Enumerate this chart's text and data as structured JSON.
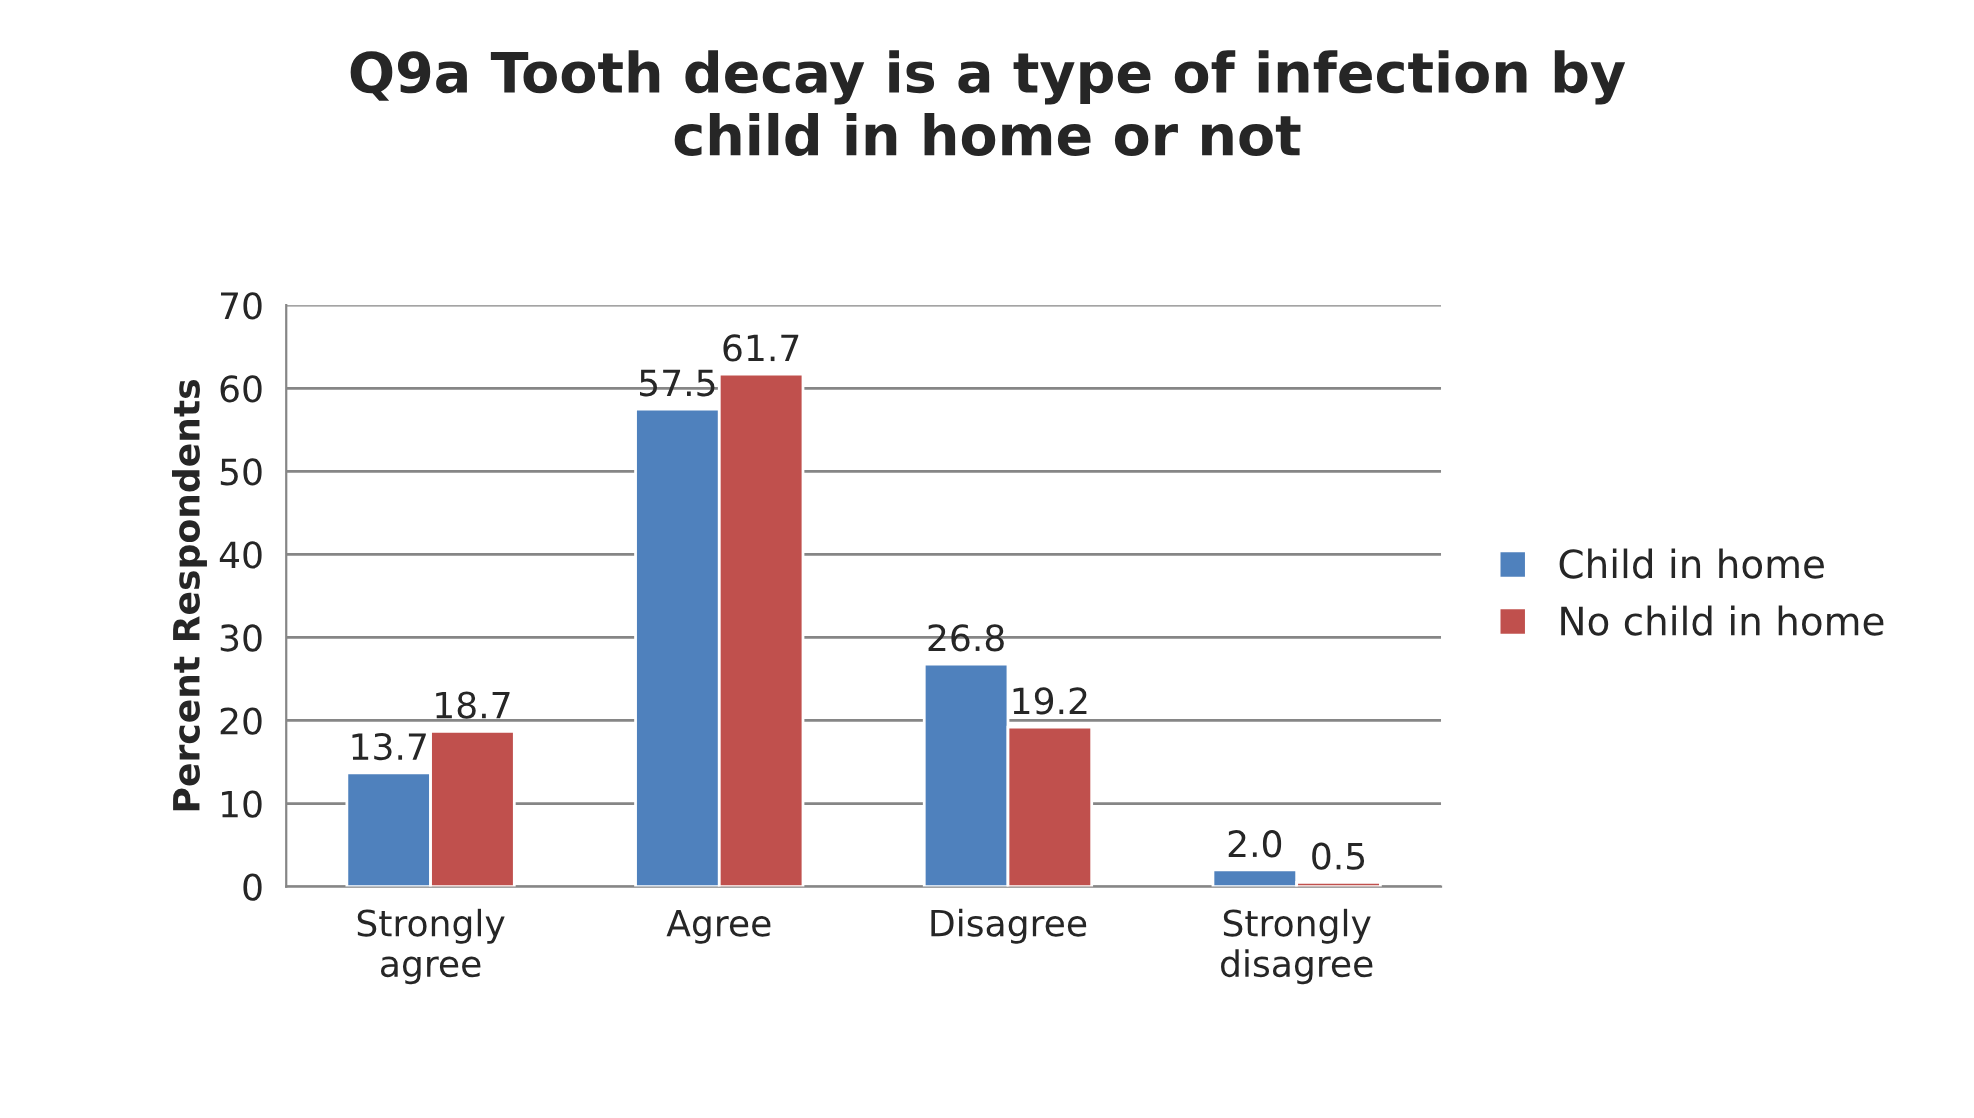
{
  "chart_data": {
    "type": "bar",
    "title": "Q9a Tooth decay is a type of infection by\nchild in home or not",
    "ylabel": "Percent Respondents",
    "categories": [
      "Strongly\nagree",
      "Agree",
      "Disagree",
      "Strongly\ndisagree"
    ],
    "series": [
      {
        "name": "Child in home",
        "color": "#4f81bd",
        "values": [
          13.7,
          57.5,
          26.8,
          2.0
        ],
        "value_labels": [
          "13.7",
          "57.5",
          "26.8",
          "2.0"
        ]
      },
      {
        "name": "No child in home",
        "color": "#c0504d",
        "values": [
          18.7,
          61.7,
          19.2,
          0.5
        ],
        "value_labels": [
          "18.7",
          "61.7",
          "19.2",
          "0.5"
        ]
      }
    ],
    "ylim": [
      0,
      70
    ],
    "yticks": [
      0,
      10,
      20,
      30,
      40,
      50,
      60,
      70
    ],
    "grid": "y",
    "legend": "right"
  }
}
